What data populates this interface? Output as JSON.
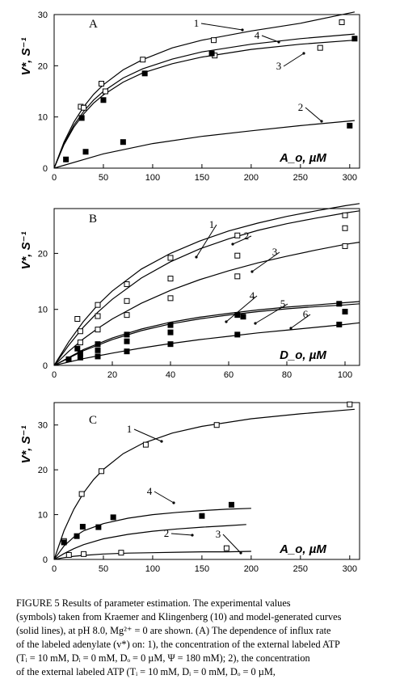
{
  "chart_data": [
    {
      "type": "line",
      "panel": "A",
      "xlabel": "A_o, µM",
      "ylabel": "V*, S⁻¹",
      "xlim": [
        0,
        310
      ],
      "ylim": [
        0,
        30
      ],
      "xticks": [
        0,
        50,
        100,
        150,
        200,
        250,
        300
      ],
      "yticks": [
        0,
        10,
        20,
        30
      ],
      "series": [
        {
          "name": "1",
          "x": [
            0,
            10,
            20,
            30,
            40,
            50,
            70,
            90,
            120,
            150,
            200,
            250,
            305
          ],
          "y": [
            0,
            5.1,
            9.0,
            12.0,
            14.4,
            16.3,
            19.2,
            21.2,
            23.5,
            25.0,
            26.8,
            28.3,
            30.5
          ]
        },
        {
          "name": "2",
          "x": [
            0,
            50,
            100,
            150,
            200,
            250,
            305
          ],
          "y": [
            0,
            2.8,
            4.8,
            6.2,
            7.3,
            8.3,
            9.3
          ]
        },
        {
          "name": "3",
          "x": [
            0,
            10,
            20,
            30,
            40,
            50,
            70,
            90,
            120,
            150,
            200,
            250,
            305
          ],
          "y": [
            0,
            4.6,
            8.0,
            10.6,
            12.7,
            14.3,
            16.8,
            18.6,
            20.4,
            21.7,
            23.2,
            24.2,
            25.0
          ]
        },
        {
          "name": "4",
          "x": [
            0,
            10,
            20,
            30,
            40,
            50,
            70,
            90,
            120,
            150,
            200,
            250,
            305
          ],
          "y": [
            0,
            4.8,
            8.4,
            11.1,
            13.3,
            15.0,
            17.6,
            19.4,
            21.3,
            22.7,
            24.2,
            25.3,
            26.2
          ]
        }
      ],
      "points": {
        "open": [
          [
            27,
            12
          ],
          [
            30,
            11.8
          ],
          [
            48,
            16.5
          ],
          [
            52,
            15
          ],
          [
            90,
            21.2
          ],
          [
            162,
            25
          ],
          [
            163,
            22
          ],
          [
            270,
            23.5
          ],
          [
            292,
            28.5
          ]
        ],
        "filled": [
          [
            12,
            1.7
          ],
          [
            28,
            9.8
          ],
          [
            32,
            3.2
          ],
          [
            50,
            13.3
          ],
          [
            70,
            5.1
          ],
          [
            92,
            18.5
          ],
          [
            160,
            22.4
          ],
          [
            300,
            8.3
          ],
          [
            305,
            25.3
          ]
        ]
      }
    },
    {
      "type": "line",
      "panel": "B",
      "xlabel": "D_o, µM",
      "ylabel": "V*, S⁻¹",
      "xlim": [
        0,
        105
      ],
      "ylim": [
        0,
        28
      ],
      "xticks": [
        0,
        20,
        40,
        60,
        80,
        100
      ],
      "yticks": [
        0,
        10,
        20
      ],
      "series": [
        {
          "name": "1",
          "x": [
            0,
            5,
            10,
            15,
            20,
            30,
            40,
            50,
            60,
            70,
            80,
            90,
            100,
            105
          ],
          "y": [
            0,
            4.2,
            7.8,
            10.8,
            13.3,
            17.2,
            20.0,
            22.2,
            24.0,
            25.4,
            26.6,
            27.6,
            28.5,
            28.9
          ]
        },
        {
          "name": "2",
          "x": [
            0,
            5,
            10,
            15,
            20,
            30,
            40,
            50,
            60,
            70,
            80,
            90,
            100,
            105
          ],
          "y": [
            0,
            3.6,
            6.8,
            9.5,
            11.8,
            15.6,
            18.5,
            20.8,
            22.6,
            24.1,
            25.3,
            26.3,
            27.2,
            27.6
          ]
        },
        {
          "name": "3",
          "x": [
            0,
            5,
            10,
            15,
            20,
            30,
            40,
            50,
            60,
            70,
            80,
            90,
            100,
            105
          ],
          "y": [
            0,
            2.5,
            4.7,
            6.6,
            8.3,
            11.1,
            13.4,
            15.3,
            16.9,
            18.3,
            19.5,
            20.6,
            21.6,
            22.0
          ]
        },
        {
          "name": "4",
          "x": [
            0,
            10,
            20,
            30,
            40,
            50,
            60,
            70,
            80,
            90,
            100,
            105
          ],
          "y": [
            0,
            2.6,
            4.6,
            6.2,
            7.4,
            8.3,
            9.0,
            9.6,
            10.1,
            10.5,
            10.8,
            11.0
          ]
        },
        {
          "name": "5",
          "x": [
            0,
            10,
            20,
            30,
            40,
            50,
            60,
            70,
            80,
            90,
            100,
            105
          ],
          "y": [
            0,
            2.8,
            4.9,
            6.5,
            7.7,
            8.6,
            9.3,
            9.9,
            10.4,
            10.8,
            11.2,
            11.4
          ]
        },
        {
          "name": "6",
          "x": [
            0,
            10,
            20,
            30,
            40,
            50,
            60,
            70,
            80,
            90,
            100,
            105
          ],
          "y": [
            0,
            1.2,
            2.2,
            3.1,
            3.9,
            4.6,
            5.2,
            5.8,
            6.3,
            6.8,
            7.3,
            7.6
          ]
        }
      ],
      "points": {
        "open": [
          [
            8,
            8.3
          ],
          [
            9,
            6.1
          ],
          [
            9,
            4.1
          ],
          [
            15,
            10.8
          ],
          [
            15,
            8.8
          ],
          [
            15,
            6.4
          ],
          [
            25,
            14.5
          ],
          [
            25,
            11.5
          ],
          [
            25,
            9.0
          ],
          [
            40,
            19.2
          ],
          [
            40,
            15.5
          ],
          [
            40,
            12.0
          ],
          [
            63,
            23.2
          ],
          [
            63,
            19.6
          ],
          [
            63,
            15.9
          ],
          [
            100,
            26.8
          ],
          [
            100,
            24.5
          ],
          [
            100,
            21.3
          ]
        ],
        "filled": [
          [
            5,
            1.1
          ],
          [
            8,
            3.0
          ],
          [
            9,
            2.2
          ],
          [
            9,
            1.4
          ],
          [
            15,
            3.8
          ],
          [
            15,
            2.7
          ],
          [
            15,
            1.6
          ],
          [
            25,
            5.5
          ],
          [
            25,
            4.3
          ],
          [
            25,
            2.5
          ],
          [
            40,
            7.2
          ],
          [
            40,
            5.9
          ],
          [
            40,
            3.8
          ],
          [
            63,
            9.0
          ],
          [
            65,
            8.7
          ],
          [
            63,
            5.5
          ],
          [
            98,
            11.0
          ],
          [
            98,
            7.3
          ],
          [
            100,
            9.6
          ]
        ]
      }
    },
    {
      "type": "line",
      "panel": "C",
      "xlabel": "A_o, µM",
      "ylabel": "V*, S⁻¹",
      "xlim": [
        0,
        310
      ],
      "ylim": [
        0,
        35
      ],
      "xticks": [
        0,
        50,
        100,
        150,
        200,
        250,
        300
      ],
      "yticks": [
        0,
        10,
        20,
        30
      ],
      "series": [
        {
          "name": "1",
          "x": [
            0,
            10,
            20,
            30,
            40,
            50,
            70,
            90,
            120,
            150,
            200,
            250,
            305
          ],
          "y": [
            0,
            6.4,
            11.2,
            14.9,
            17.8,
            20.1,
            23.6,
            25.9,
            28.2,
            29.7,
            31.4,
            32.5,
            33.5
          ]
        },
        {
          "name": "2",
          "x": [
            0,
            10,
            20,
            30,
            50,
            75,
            100,
            125,
            150,
            175,
            195
          ],
          "y": [
            0,
            1.3,
            2.4,
            3.3,
            4.6,
            5.6,
            6.3,
            6.8,
            7.2,
            7.5,
            7.8
          ]
        },
        {
          "name": "3",
          "x": [
            0,
            10,
            20,
            30,
            50,
            75,
            100,
            125,
            150,
            175,
            200
          ],
          "y": [
            0,
            0.4,
            0.7,
            0.9,
            1.2,
            1.4,
            1.5,
            1.6,
            1.7,
            1.7,
            1.8
          ]
        },
        {
          "name": "4",
          "x": [
            0,
            10,
            20,
            30,
            50,
            75,
            100,
            125,
            150,
            175,
            200
          ],
          "y": [
            0,
            3.0,
            5.0,
            6.4,
            8.0,
            9.2,
            10.0,
            10.5,
            10.9,
            11.2,
            11.4
          ]
        }
      ],
      "points": {
        "open": [
          [
            10,
            4.1
          ],
          [
            15,
            1.0
          ],
          [
            28,
            14.6
          ],
          [
            30,
            1.2
          ],
          [
            48,
            19.7
          ],
          [
            68,
            1.5
          ],
          [
            93,
            25.6
          ],
          [
            165,
            30.0
          ],
          [
            175,
            2.5
          ],
          [
            300,
            34.6
          ]
        ],
        "filled": [
          [
            10,
            3.8
          ],
          [
            23,
            5.2
          ],
          [
            29,
            7.3
          ],
          [
            45,
            7.2
          ],
          [
            60,
            9.4
          ],
          [
            150,
            9.7
          ],
          [
            180,
            12.2
          ]
        ]
      }
    }
  ],
  "caption": {
    "figure_label": "FIGURE 5",
    "title": "Results of parameter estimation.",
    "lines": [
      "FIGURE 5   Results of parameter estimation. The experimental values",
      "(symbols) taken from Kraemer and Klingenberg (10) and model-generated curves",
      "(solid lines), at pH 8.0, Mg²⁺ = 0 are shown. (A) The dependence of influx rate",
      "of the labeled adenylate (v*) on: 1), the concentration of the external labeled ATP",
      "(Tᵢ = 10 mM, Dᵢ = 0 mM, Dₒ = 0 µM, Ψ = 180 mM); 2), the concentration",
      "of  the  external  labeled  ATP  (Tᵢ = 10 mM, Dᵢ = 0 mM, Dₒ = 0 µM,"
    ]
  }
}
